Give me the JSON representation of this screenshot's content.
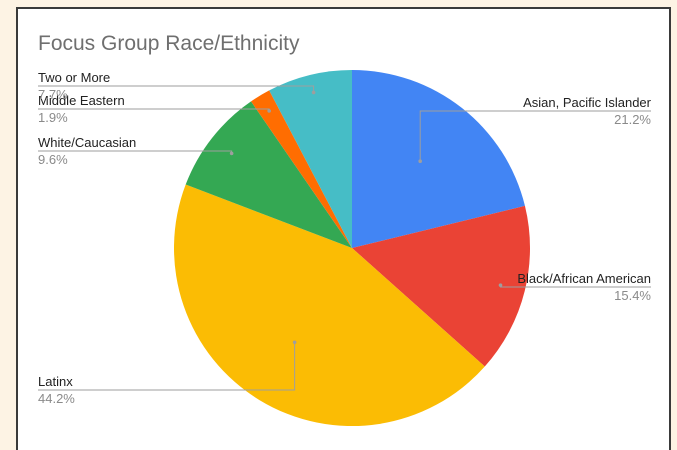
{
  "chart_data": {
    "type": "pie",
    "title": "Focus Group Race/Ethnicity",
    "slices": [
      {
        "label": "Asian, Pacific Islander",
        "value": 21.2,
        "display": "21.2%",
        "color": "#4285f4"
      },
      {
        "label": "Black/African American",
        "value": 15.4,
        "display": "15.4%",
        "color": "#ea4335"
      },
      {
        "label": "Latinx",
        "value": 44.2,
        "display": "44.2%",
        "color": "#fbbc04"
      },
      {
        "label": "White/Caucasian",
        "value": 9.6,
        "display": "9.6%",
        "color": "#34a853"
      },
      {
        "label": "Middle Eastern",
        "value": 1.9,
        "display": "1.9%",
        "color": "#ff6d01"
      },
      {
        "label": "Two or More",
        "value": 7.7,
        "display": "7.7%",
        "color": "#46bdc6"
      }
    ],
    "legend": "none",
    "labels": "outside with leader lines"
  }
}
